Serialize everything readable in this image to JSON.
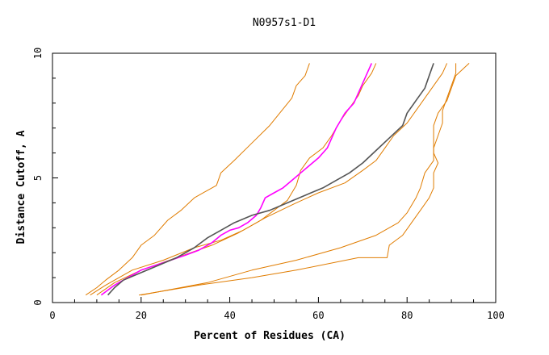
{
  "chart_data": {
    "type": "line",
    "title": "N0957s1-D1",
    "xlabel": "Percent of Residues (CA)",
    "ylabel": "Distance Cutoff, A",
    "xlim": [
      0,
      100
    ],
    "ylim": [
      0,
      10
    ],
    "xticks": [
      "0",
      "20",
      "40",
      "60",
      "80",
      "100"
    ],
    "yticks": [
      "0",
      "5",
      "10"
    ],
    "grid": false,
    "legend": "none",
    "series": [
      {
        "color": "#e07c00",
        "points": [
          [
            7.5,
            0.3
          ],
          [
            10,
            0.6
          ],
          [
            12,
            0.9
          ],
          [
            15,
            1.3
          ],
          [
            18,
            1.8
          ],
          [
            20,
            2.3
          ],
          [
            23,
            2.7
          ],
          [
            26,
            3.3
          ],
          [
            29,
            3.7
          ],
          [
            32,
            4.2
          ],
          [
            35,
            4.5
          ],
          [
            37,
            4.7
          ],
          [
            38,
            5.2
          ],
          [
            41,
            5.7
          ],
          [
            45,
            6.4
          ],
          [
            49,
            7.1
          ],
          [
            54,
            8.2
          ],
          [
            55,
            8.7
          ],
          [
            57,
            9.1
          ],
          [
            58,
            9.6
          ]
        ]
      },
      {
        "color": "#e07c00",
        "points": [
          [
            8.5,
            0.3
          ],
          [
            12,
            0.7
          ],
          [
            18,
            1.3
          ],
          [
            25,
            1.7
          ],
          [
            32,
            2.2
          ],
          [
            38,
            2.5
          ],
          [
            43,
            2.9
          ],
          [
            47,
            3.3
          ],
          [
            50,
            3.7
          ],
          [
            53,
            4.1
          ],
          [
            55,
            4.7
          ],
          [
            56,
            5.3
          ],
          [
            58,
            5.8
          ],
          [
            61,
            6.2
          ],
          [
            63,
            6.7
          ],
          [
            65,
            7.3
          ],
          [
            67,
            7.8
          ],
          [
            69,
            8.3
          ],
          [
            70,
            8.7
          ],
          [
            72,
            9.2
          ],
          [
            73,
            9.6
          ]
        ]
      },
      {
        "color": "#e07c00",
        "points": [
          [
            10,
            0.3
          ],
          [
            14,
            0.8
          ],
          [
            20,
            1.3
          ],
          [
            28,
            1.8
          ],
          [
            36,
            2.3
          ],
          [
            42,
            2.8
          ],
          [
            48,
            3.4
          ],
          [
            55,
            4.0
          ],
          [
            60,
            4.4
          ],
          [
            66,
            4.8
          ],
          [
            70,
            5.3
          ],
          [
            73,
            5.7
          ],
          [
            75,
            6.2
          ],
          [
            77,
            6.7
          ],
          [
            80,
            7.2
          ],
          [
            82,
            7.7
          ],
          [
            84,
            8.2
          ],
          [
            86,
            8.7
          ],
          [
            88,
            9.2
          ],
          [
            89,
            9.6
          ]
        ]
      },
      {
        "color": "#e07c00",
        "points": [
          [
            20,
            0.3
          ],
          [
            23,
            0.4
          ],
          [
            35,
            0.8
          ],
          [
            45,
            1.3
          ],
          [
            55,
            1.7
          ],
          [
            65,
            2.2
          ],
          [
            73,
            2.7
          ],
          [
            78,
            3.2
          ],
          [
            80,
            3.6
          ],
          [
            82,
            4.2
          ],
          [
            83,
            4.6
          ],
          [
            84,
            5.2
          ],
          [
            86,
            5.7
          ],
          [
            86,
            6.2
          ],
          [
            87,
            6.7
          ],
          [
            88,
            7.2
          ],
          [
            88,
            7.7
          ],
          [
            89,
            8.2
          ],
          [
            90,
            8.7
          ],
          [
            91,
            9.2
          ],
          [
            91,
            9.6
          ]
        ]
      },
      {
        "color": "#e07c00",
        "points": [
          [
            19.5,
            0.3
          ],
          [
            33,
            0.7
          ],
          [
            45,
            1.0
          ],
          [
            55,
            1.3
          ],
          [
            69,
            1.8
          ],
          [
            75.5,
            1.8
          ],
          [
            76,
            2.3
          ],
          [
            79,
            2.7
          ],
          [
            81,
            3.2
          ],
          [
            83,
            3.7
          ],
          [
            85,
            4.2
          ],
          [
            86,
            4.6
          ],
          [
            86,
            5.2
          ],
          [
            87,
            5.6
          ],
          [
            86,
            6.0
          ],
          [
            86,
            6.6
          ],
          [
            86,
            7.1
          ],
          [
            87,
            7.6
          ],
          [
            89,
            8.1
          ],
          [
            91,
            9.1
          ],
          [
            94,
            9.6
          ]
        ]
      },
      {
        "color": "#ff00ff",
        "points": [
          [
            11,
            0.3
          ],
          [
            14,
            0.7
          ],
          [
            17,
            1.0
          ],
          [
            20,
            1.3
          ],
          [
            25,
            1.6
          ],
          [
            30,
            1.9
          ],
          [
            33,
            2.1
          ],
          [
            36,
            2.4
          ],
          [
            38,
            2.7
          ],
          [
            40,
            2.9
          ],
          [
            42,
            3.0
          ],
          [
            44,
            3.2
          ],
          [
            46,
            3.5
          ],
          [
            47,
            3.8
          ],
          [
            48,
            4.2
          ],
          [
            50,
            4.4
          ],
          [
            52,
            4.6
          ],
          [
            54,
            4.9
          ],
          [
            56,
            5.2
          ],
          [
            58,
            5.5
          ],
          [
            60,
            5.8
          ],
          [
            62,
            6.2
          ],
          [
            63,
            6.6
          ],
          [
            64,
            7.0
          ],
          [
            65,
            7.3
          ],
          [
            66,
            7.6
          ],
          [
            68,
            8.0
          ],
          [
            69,
            8.4
          ],
          [
            70,
            8.8
          ],
          [
            71,
            9.2
          ],
          [
            72,
            9.6
          ]
        ]
      },
      {
        "color": "#555555",
        "points": [
          [
            12.5,
            0.3
          ],
          [
            14,
            0.6
          ],
          [
            16,
            0.9
          ],
          [
            20,
            1.2
          ],
          [
            24,
            1.5
          ],
          [
            28,
            1.8
          ],
          [
            32,
            2.2
          ],
          [
            35,
            2.6
          ],
          [
            38,
            2.9
          ],
          [
            41,
            3.2
          ],
          [
            45,
            3.5
          ],
          [
            49,
            3.7
          ],
          [
            53,
            4.0
          ],
          [
            57,
            4.3
          ],
          [
            61,
            4.6
          ],
          [
            64,
            4.9
          ],
          [
            67,
            5.2
          ],
          [
            70,
            5.6
          ],
          [
            73,
            6.1
          ],
          [
            76,
            6.6
          ],
          [
            79,
            7.1
          ],
          [
            80,
            7.6
          ],
          [
            82,
            8.1
          ],
          [
            84,
            8.6
          ],
          [
            85,
            9.1
          ],
          [
            86,
            9.6
          ]
        ]
      }
    ]
  }
}
